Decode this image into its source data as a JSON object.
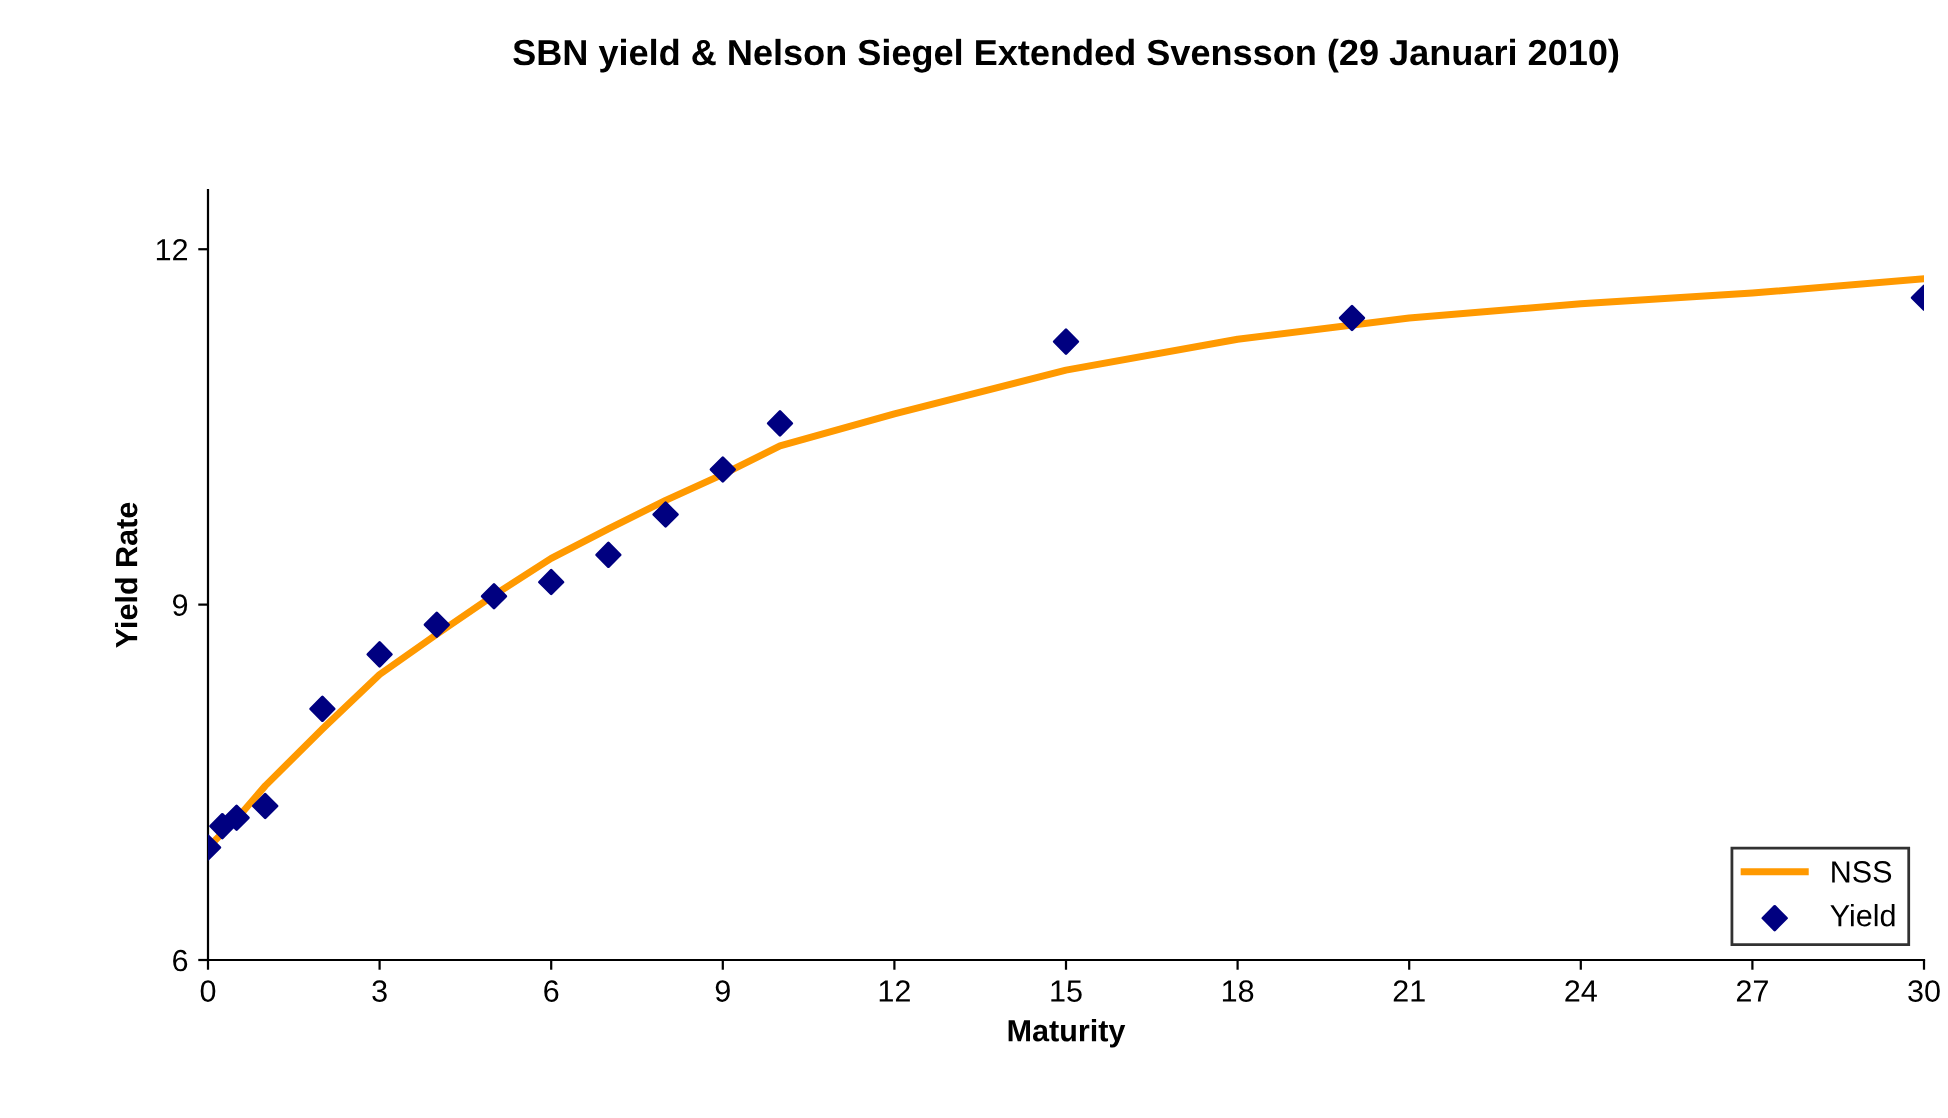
{
  "chart_data": {
    "type": "line",
    "title": "SBN yield & Nelson Siegel Extended Svensson (29 Januari 2010)",
    "xlabel": "Maturity",
    "ylabel": "Yield Rate",
    "xlim": [
      0,
      30
    ],
    "xticks": [
      0,
      3,
      6,
      9,
      12,
      15,
      18,
      21,
      24,
      27,
      30
    ],
    "ylim": [
      6,
      12.5
    ],
    "yticks": [
      6,
      9,
      12
    ],
    "grid": false,
    "legend": "bottom right",
    "series": [
      {
        "name": "NSS",
        "color": "#ff9900",
        "marker": "none",
        "line_style": "solid",
        "x": [
          0,
          0.5,
          1,
          2,
          3,
          4,
          5,
          6,
          7,
          8,
          9,
          10,
          12,
          15,
          18,
          21,
          24,
          27,
          30
        ],
        "values": [
          6.95,
          7.19,
          7.47,
          7.95,
          8.41,
          8.75,
          9.08,
          9.39,
          9.64,
          9.88,
          10.1,
          10.34,
          10.61,
          10.98,
          11.24,
          11.42,
          11.54,
          11.63,
          11.75
        ]
      },
      {
        "name": "Yield",
        "type": "scatter",
        "color": "#000080",
        "marker": "diamond",
        "x": [
          0,
          0.25,
          0.5,
          1,
          2,
          3,
          4,
          5,
          6,
          7,
          8,
          9,
          10,
          15,
          20,
          30
        ],
        "values": [
          6.95,
          7.13,
          7.2,
          7.3,
          8.12,
          8.58,
          8.83,
          9.07,
          9.19,
          9.42,
          9.76,
          10.14,
          10.53,
          11.22,
          11.42,
          11.59
        ]
      }
    ]
  }
}
